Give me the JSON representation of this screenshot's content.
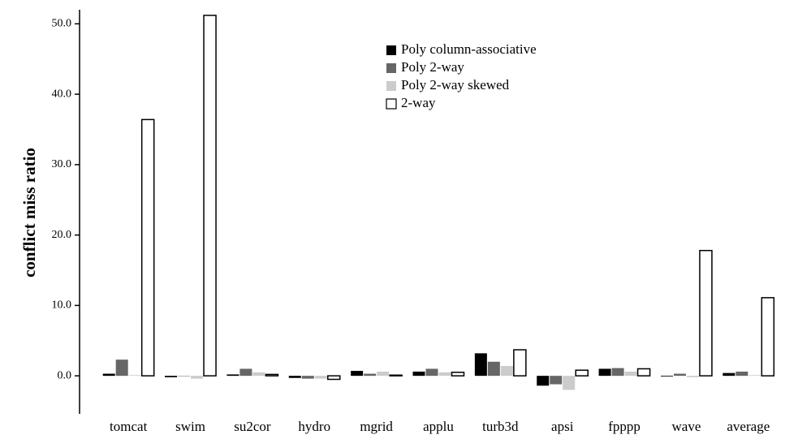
{
  "chart_data": {
    "type": "bar",
    "y_label": "conflict miss ratio",
    "categories": [
      "tomcat",
      "swim",
      "su2cor",
      "hydro",
      "mgrid",
      "applu",
      "turb3d",
      "apsi",
      "fpppp",
      "wave",
      "average"
    ],
    "series": [
      {
        "name": "Poly column-associative",
        "color": "#000000",
        "values": [
          0.3,
          -0.2,
          0.2,
          -0.3,
          0.7,
          0.6,
          3.2,
          -1.4,
          1.0,
          -0.1,
          0.4
        ]
      },
      {
        "name": "Poly 2-way",
        "color": "#666666",
        "values": [
          2.3,
          0.0,
          1.0,
          -0.4,
          0.3,
          1.0,
          2.0,
          -1.2,
          1.1,
          0.3,
          0.6
        ]
      },
      {
        "name": "Poly 2-way skewed",
        "color": "#cccccc",
        "values": [
          0.1,
          -0.4,
          0.5,
          -0.4,
          0.6,
          0.5,
          1.4,
          -2.0,
          0.6,
          -0.2,
          0.1
        ]
      },
      {
        "name": "2-way",
        "color": "#ffffff",
        "values": [
          36.4,
          51.2,
          0.2,
          -0.5,
          0.1,
          0.5,
          3.7,
          0.8,
          1.0,
          17.8,
          11.1
        ]
      }
    ],
    "ylim": [
      -5.4,
      52
    ],
    "yticks": [
      {
        "value": 0,
        "label": "0.0"
      },
      {
        "value": 10,
        "label": "10.0"
      },
      {
        "value": 20,
        "label": "20.0"
      },
      {
        "value": 30,
        "label": "30.0"
      },
      {
        "value": 40,
        "label": "40.0"
      },
      {
        "value": 50,
        "label": "50.0"
      }
    ],
    "legend": "top-center"
  }
}
